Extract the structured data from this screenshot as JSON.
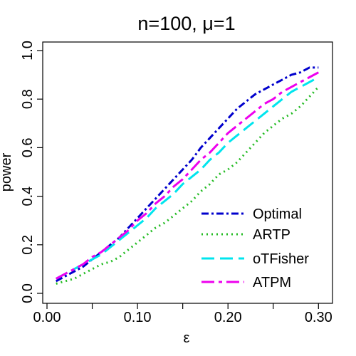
{
  "chart_data": {
    "type": "line",
    "title": "n=100, μ=1",
    "xlabel": "ε",
    "ylabel": "power",
    "xlim": [
      0.0,
      0.31
    ],
    "ylim": [
      0.0,
      1.0
    ],
    "x_ticks": [
      0.0,
      0.05,
      0.1,
      0.15,
      0.2,
      0.25,
      0.3
    ],
    "x_tick_labels": [
      "0.00",
      "",
      "0.10",
      "",
      "0.20",
      "",
      "0.30"
    ],
    "y_ticks": [
      0.0,
      0.2,
      0.4,
      0.6,
      0.8,
      1.0
    ],
    "y_tick_labels": [
      "0.0",
      "0.2",
      "0.4",
      "0.6",
      "0.8",
      "1.0"
    ],
    "legend_position": "bottom-right",
    "x": [
      0.01,
      0.02,
      0.03,
      0.04,
      0.05,
      0.06,
      0.07,
      0.08,
      0.09,
      0.1,
      0.11,
      0.12,
      0.13,
      0.14,
      0.15,
      0.16,
      0.17,
      0.18,
      0.19,
      0.2,
      0.21,
      0.22,
      0.23,
      0.24,
      0.25,
      0.26,
      0.27,
      0.28,
      0.29,
      0.3
    ],
    "series": [
      {
        "name": "Optimal",
        "color": "#0000CD",
        "dash": "10,4,3,4",
        "values": [
          0.05,
          0.07,
          0.09,
          0.11,
          0.14,
          0.17,
          0.2,
          0.23,
          0.27,
          0.31,
          0.35,
          0.39,
          0.43,
          0.47,
          0.51,
          0.55,
          0.6,
          0.64,
          0.68,
          0.72,
          0.76,
          0.79,
          0.82,
          0.84,
          0.86,
          0.88,
          0.9,
          0.91,
          0.93,
          0.93
        ]
      },
      {
        "name": "ARTP",
        "color": "#22BB22",
        "dash": "2,5",
        "values": [
          0.04,
          0.05,
          0.06,
          0.08,
          0.1,
          0.12,
          0.13,
          0.15,
          0.18,
          0.21,
          0.24,
          0.27,
          0.29,
          0.32,
          0.35,
          0.38,
          0.42,
          0.45,
          0.49,
          0.51,
          0.54,
          0.58,
          0.62,
          0.66,
          0.69,
          0.72,
          0.74,
          0.77,
          0.81,
          0.85
        ]
      },
      {
        "name": "oTFisher",
        "color": "#00E5EE",
        "dash": "18,8",
        "values": [
          0.06,
          0.08,
          0.1,
          0.12,
          0.14,
          0.16,
          0.19,
          0.22,
          0.25,
          0.28,
          0.31,
          0.35,
          0.38,
          0.41,
          0.45,
          0.48,
          0.51,
          0.55,
          0.58,
          0.62,
          0.65,
          0.68,
          0.71,
          0.74,
          0.77,
          0.8,
          0.83,
          0.85,
          0.87,
          0.89
        ]
      },
      {
        "name": "ATPM",
        "color": "#EE00EE",
        "dash": "18,6,5,6",
        "values": [
          0.06,
          0.08,
          0.1,
          0.12,
          0.15,
          0.17,
          0.2,
          0.23,
          0.26,
          0.3,
          0.33,
          0.37,
          0.4,
          0.44,
          0.47,
          0.51,
          0.55,
          0.58,
          0.62,
          0.66,
          0.69,
          0.72,
          0.75,
          0.78,
          0.8,
          0.83,
          0.85,
          0.87,
          0.89,
          0.91
        ]
      }
    ]
  }
}
